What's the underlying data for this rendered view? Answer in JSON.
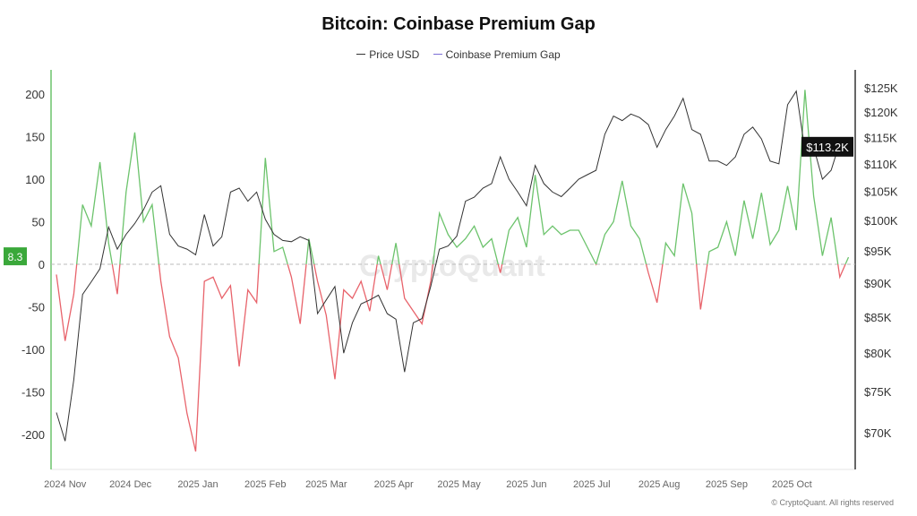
{
  "chart_data": {
    "type": "line",
    "title": "Bitcoin: Coinbase Premium Gap",
    "legend": [
      "Price USD",
      "Coinbase Premium Gap"
    ],
    "legend_placement": "top-center",
    "colors": {
      "price": "#333333",
      "gap_positive": "#6cc36c",
      "gap_negative": "#e8636b",
      "legend_gap": "#7b6fd6"
    },
    "left_axis": {
      "ticks": [
        200,
        150,
        100,
        50,
        0,
        -50,
        -100,
        -150,
        -200
      ],
      "labels": [
        "200",
        "150",
        "100",
        "50",
        "0",
        "-50",
        "-100",
        "-150",
        "-200"
      ],
      "range": [
        -242,
        220
      ]
    },
    "right_axis": {
      "scale": "log",
      "ticks": [
        125000,
        120000,
        115000,
        110000,
        105000,
        100000,
        95000,
        90000,
        85000,
        80000,
        75000,
        70000
      ],
      "labels": [
        "$125K",
        "$120K",
        "$115K",
        "$110K",
        "$105K",
        "$100K",
        "$95K",
        "$90K",
        "$85K",
        "$80K",
        "$75K",
        "$70K"
      ],
      "range": [
        65500,
        134000
      ]
    },
    "x_ticks": [
      {
        "date": "2024-11-01",
        "label": "2024 Nov"
      },
      {
        "date": "2024-12-01",
        "label": "2024 Dec"
      },
      {
        "date": "2025-01-01",
        "label": "2025 Jan"
      },
      {
        "date": "2025-02-01",
        "label": "2025 Feb"
      },
      {
        "date": "2025-03-01",
        "label": "2025 Mar"
      },
      {
        "date": "2025-04-01",
        "label": "2025 Apr"
      },
      {
        "date": "2025-05-01",
        "label": "2025 May"
      },
      {
        "date": "2025-06-01",
        "label": "2025 Jun"
      },
      {
        "date": "2025-07-01",
        "label": "2025 Jul"
      },
      {
        "date": "2025-08-01",
        "label": "2025 Aug"
      },
      {
        "date": "2025-09-01",
        "label": "2025 Sep"
      },
      {
        "date": "2025-10-01",
        "label": "2025 Oct"
      }
    ],
    "x_range": [
      "2024-10-28",
      "2025-11-01"
    ],
    "zero_line": 0,
    "dates": [
      "2024-10-28",
      "2024-11-01",
      "2024-11-05",
      "2024-11-09",
      "2024-11-13",
      "2024-11-17",
      "2024-11-21",
      "2024-11-25",
      "2024-11-29",
      "2024-12-03",
      "2024-12-07",
      "2024-12-11",
      "2024-12-15",
      "2024-12-19",
      "2024-12-23",
      "2024-12-27",
      "2024-12-31",
      "2025-01-04",
      "2025-01-08",
      "2025-01-12",
      "2025-01-16",
      "2025-01-20",
      "2025-01-24",
      "2025-01-28",
      "2025-02-01",
      "2025-02-05",
      "2025-02-09",
      "2025-02-13",
      "2025-02-17",
      "2025-02-21",
      "2025-02-25",
      "2025-03-01",
      "2025-03-05",
      "2025-03-09",
      "2025-03-13",
      "2025-03-17",
      "2025-03-21",
      "2025-03-25",
      "2025-03-29",
      "2025-04-02",
      "2025-04-06",
      "2025-04-10",
      "2025-04-14",
      "2025-04-18",
      "2025-04-22",
      "2025-04-26",
      "2025-04-30",
      "2025-05-04",
      "2025-05-08",
      "2025-05-12",
      "2025-05-16",
      "2025-05-20",
      "2025-05-24",
      "2025-05-28",
      "2025-06-01",
      "2025-06-05",
      "2025-06-09",
      "2025-06-13",
      "2025-06-17",
      "2025-06-21",
      "2025-06-25",
      "2025-06-29",
      "2025-07-03",
      "2025-07-07",
      "2025-07-11",
      "2025-07-15",
      "2025-07-19",
      "2025-07-23",
      "2025-07-27",
      "2025-07-31",
      "2025-08-04",
      "2025-08-08",
      "2025-08-12",
      "2025-08-16",
      "2025-08-20",
      "2025-08-24",
      "2025-08-28",
      "2025-09-01",
      "2025-09-05",
      "2025-09-09",
      "2025-09-13",
      "2025-09-17",
      "2025-09-21",
      "2025-09-25",
      "2025-09-29",
      "2025-10-03",
      "2025-10-07",
      "2025-10-11",
      "2025-10-15",
      "2025-10-19",
      "2025-10-23",
      "2025-10-27"
    ],
    "series": [
      {
        "name": "Price USD",
        "axis": "right",
        "values": [
          72400,
          69000,
          76500,
          88300,
          90200,
          92200,
          98900,
          95300,
          97700,
          99500,
          101800,
          104900,
          106000,
          97700,
          95800,
          95300,
          94400,
          101000,
          95800,
          97300,
          104900,
          105600,
          103300,
          104900,
          100200,
          97700,
          96700,
          96500,
          97300,
          96700,
          85500,
          87500,
          89500,
          80000,
          84200,
          86900,
          87500,
          88200,
          85500,
          84700,
          77500,
          84200,
          84800,
          89500,
          95300,
          95800,
          97400,
          103300,
          104000,
          105600,
          106400,
          111300,
          107200,
          104900,
          102500,
          109700,
          106400,
          104900,
          104100,
          105600,
          107200,
          108000,
          108800,
          115600,
          119200,
          118300,
          119600,
          118900,
          117500,
          113100,
          116500,
          119200,
          122800,
          116500,
          115600,
          110500,
          110500,
          109700,
          111300,
          115600,
          117000,
          114700,
          110500,
          110000,
          121500,
          124300,
          112400,
          113100,
          107200,
          108800,
          114000,
          113200
        ]
      },
      {
        "name": "Coinbase Premium Gap",
        "axis": "left",
        "values": [
          -12,
          -90,
          -35,
          70,
          45,
          120,
          25,
          -35,
          85,
          155,
          50,
          70,
          -20,
          -85,
          -110,
          -175,
          -220,
          -20,
          -15,
          -40,
          -25,
          -120,
          -30,
          -45,
          125,
          15,
          20,
          -15,
          -70,
          30,
          -20,
          -60,
          -135,
          -30,
          -40,
          -20,
          -55,
          10,
          -30,
          25,
          -40,
          -55,
          -70,
          -20,
          60,
          35,
          20,
          30,
          45,
          20,
          30,
          -10,
          40,
          55,
          20,
          105,
          35,
          45,
          35,
          40,
          40,
          20,
          0,
          35,
          50,
          98,
          45,
          30,
          -10,
          -45,
          25,
          10,
          95,
          60,
          -53,
          15,
          20,
          50,
          10,
          75,
          30,
          84,
          23,
          40,
          92,
          40,
          205,
          80,
          10,
          55,
          -15,
          8.3
        ]
      }
    ],
    "last_value_labels": {
      "gap": "8.3",
      "price": "$113.2K"
    }
  },
  "watermark": "CryptoQuant",
  "copyright": "© CryptoQuant. All rights reserved"
}
